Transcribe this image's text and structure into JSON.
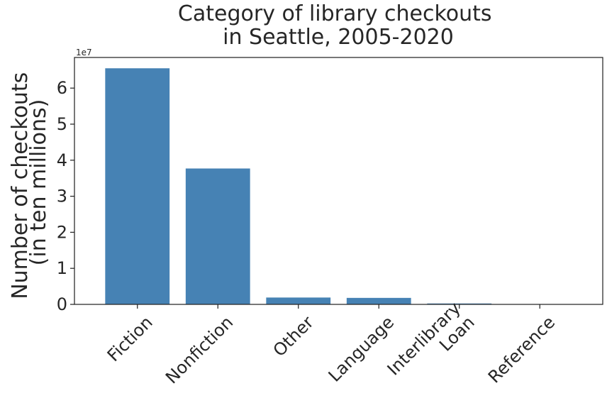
{
  "chart_data": {
    "type": "bar",
    "title": [
      "Category of library checkouts",
      "in Seattle, 2005-2020"
    ],
    "ylabel": [
      "Number of checkouts",
      "(in ten millions)"
    ],
    "xlabel": "",
    "axis_offset_label": "1e7",
    "categories": [
      [
        "Fiction"
      ],
      [
        "Nonfiction"
      ],
      [
        "Other"
      ],
      [
        "Language"
      ],
      [
        "Interlibrary",
        "Loan"
      ],
      [
        "Reference"
      ]
    ],
    "values": [
      65500000,
      37700000,
      1900000,
      1800000,
      250000,
      50000
    ],
    "ylim": [
      0,
      68500000
    ],
    "yticks": [
      0,
      10000000,
      20000000,
      30000000,
      40000000,
      50000000,
      60000000
    ],
    "ytick_labels": [
      "0",
      "1",
      "2",
      "3",
      "4",
      "5",
      "6"
    ],
    "bar_color": "#4682b4",
    "grid": false,
    "legend": "none"
  }
}
